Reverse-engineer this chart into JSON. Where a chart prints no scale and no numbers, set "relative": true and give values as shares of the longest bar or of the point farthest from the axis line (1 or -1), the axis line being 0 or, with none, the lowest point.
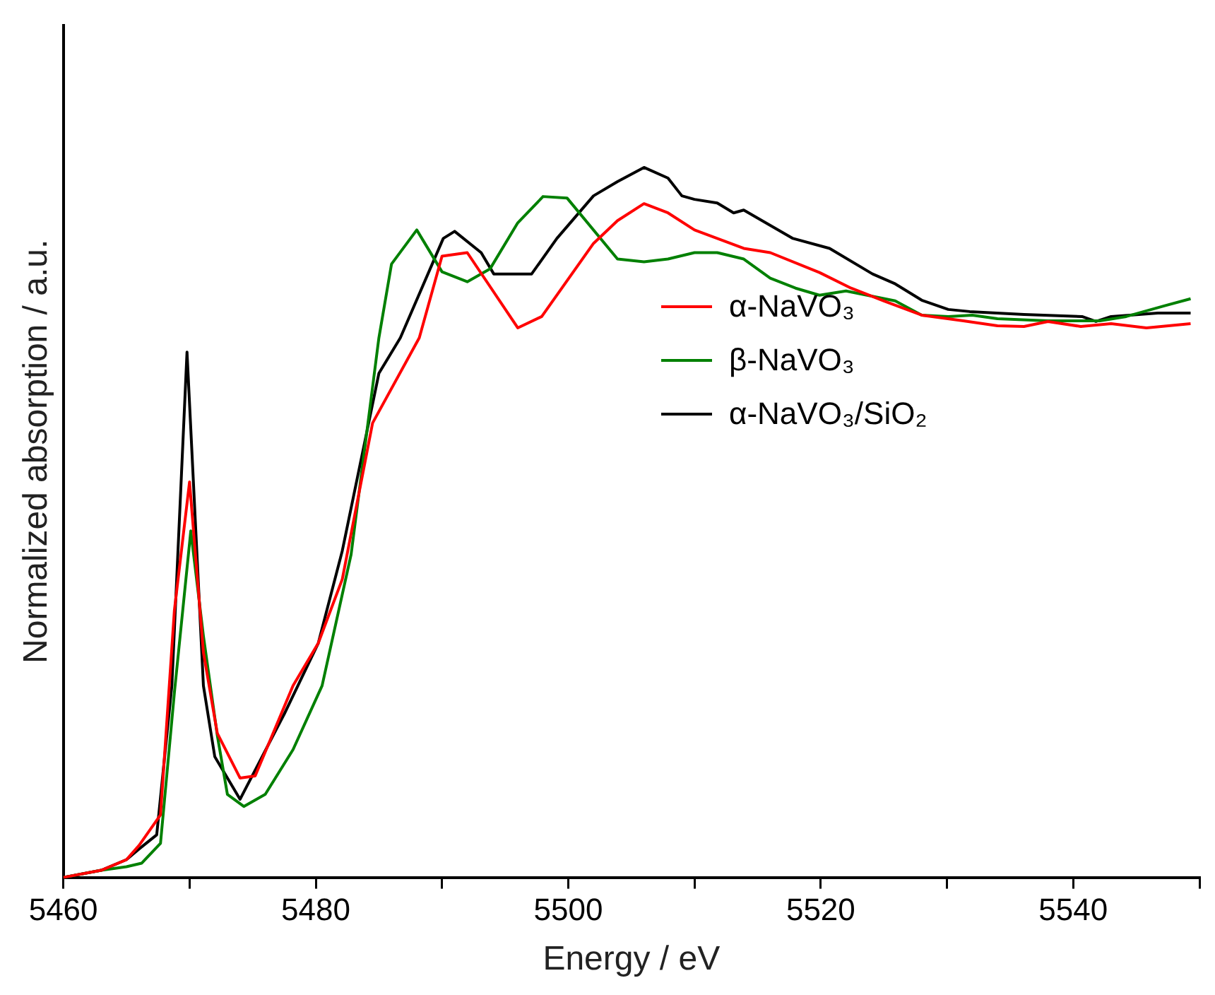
{
  "chart_data": {
    "type": "line",
    "relative": true,
    "xlabel": "Energy / eV",
    "ylabel": "Normalized absorption / a.u.",
    "xlim": [
      5460,
      5550
    ],
    "xticks": [
      5460,
      {
        "value": 5470,
        "label": null
      },
      5480,
      {
        "value": 5490,
        "label": null
      },
      5500,
      {
        "value": 5510,
        "label": null
      },
      5520,
      {
        "value": 5530,
        "label": null
      },
      5540,
      {
        "value": 5550,
        "label": null
      }
    ],
    "legend": "right",
    "grid": false,
    "marker": "none",
    "line_style": "solid",
    "series": [
      {
        "name": "α-NaVO₃",
        "color": "#ff0000",
        "x": [
          5460,
          5463,
          5465,
          5466,
          5467.7,
          5468.8,
          5470,
          5471.1,
          5472.2,
          5474,
          5475.2,
          5478.2,
          5480.2,
          5482.1,
          5484.5,
          5488.2,
          5490,
          5492,
          5496,
          5497.9,
          5502,
          5503.9,
          5506,
          5507.9,
          5510,
          5513.9,
          5516,
          5519.9,
          5522.4,
          5525,
          5528,
          5531.3,
          5534,
          5536.1,
          5538,
          5540.6,
          5543,
          5545.8,
          5549.3
        ],
        "values": [
          0.0,
          0.01,
          0.025,
          0.045,
          0.088,
          0.376,
          0.557,
          0.317,
          0.203,
          0.14,
          0.143,
          0.27,
          0.33,
          0.42,
          0.64,
          0.76,
          0.875,
          0.88,
          0.774,
          0.79,
          0.893,
          0.925,
          0.949,
          0.936,
          0.912,
          0.886,
          0.88,
          0.852,
          0.83,
          0.812,
          0.792,
          0.784,
          0.777,
          0.776,
          0.783,
          0.776,
          0.78,
          0.774,
          0.78
        ]
      },
      {
        "name": "β-NaVO₃",
        "color": "#008000",
        "x": [
          5460,
          5463,
          5465,
          5466.2,
          5467.7,
          5468.8,
          5470.1,
          5471.1,
          5472.2,
          5473,
          5474.3,
          5476,
          5478.2,
          5480.5,
          5482.8,
          5485,
          5486,
          5488,
          5490,
          5492,
          5493.8,
          5496,
          5498,
          5499.9,
          5503.9,
          5506,
          5507.9,
          5510,
          5511.8,
          5513.9,
          5516,
          5518,
          5519.9,
          5522,
          5525.9,
          5528,
          5530.1,
          5532,
          5534,
          5538,
          5542.1,
          5544.2,
          5547.2,
          5549.3
        ],
        "values": [
          0.0,
          0.01,
          0.015,
          0.02,
          0.048,
          0.26,
          0.488,
          0.34,
          0.2,
          0.117,
          0.1,
          0.117,
          0.18,
          0.27,
          0.455,
          0.76,
          0.864,
          0.912,
          0.853,
          0.839,
          0.857,
          0.922,
          0.959,
          0.957,
          0.871,
          0.867,
          0.871,
          0.88,
          0.88,
          0.871,
          0.844,
          0.83,
          0.82,
          0.826,
          0.812,
          0.792,
          0.79,
          0.792,
          0.787,
          0.784,
          0.784,
          0.79,
          0.805,
          0.815
        ]
      },
      {
        "name": "α-NaVO₃/SiO₂",
        "color": "#000000",
        "x": [
          5460,
          5463,
          5465,
          5466,
          5467.4,
          5468.6,
          5469.8,
          5471.1,
          5472,
          5474,
          5477.5,
          5480.2,
          5482.1,
          5485,
          5486.7,
          5490.1,
          5491,
          5493.1,
          5494.1,
          5495.2,
          5497.1,
          5497.9,
          5499.1,
          5502,
          5503.9,
          5506,
          5507.9,
          5509,
          5510,
          5511.8,
          5513.1,
          5513.9,
          5517.8,
          5520.7,
          5524.1,
          5525.9,
          5528,
          5530.1,
          5531.8,
          5536.1,
          5540.7,
          5541.8,
          5543,
          5546.7,
          5549.3
        ],
        "values": [
          0.0,
          0.01,
          0.025,
          0.04,
          0.06,
          0.27,
          0.74,
          0.27,
          0.17,
          0.11,
          0.23,
          0.33,
          0.46,
          0.71,
          0.76,
          0.9,
          0.91,
          0.88,
          0.85,
          0.85,
          0.85,
          0.87,
          0.9,
          0.96,
          0.98,
          1.0,
          0.985,
          0.96,
          0.955,
          0.95,
          0.936,
          0.94,
          0.9,
          0.886,
          0.85,
          0.836,
          0.813,
          0.8,
          0.797,
          0.793,
          0.79,
          0.783,
          0.79,
          0.795,
          0.795
        ]
      }
    ]
  }
}
